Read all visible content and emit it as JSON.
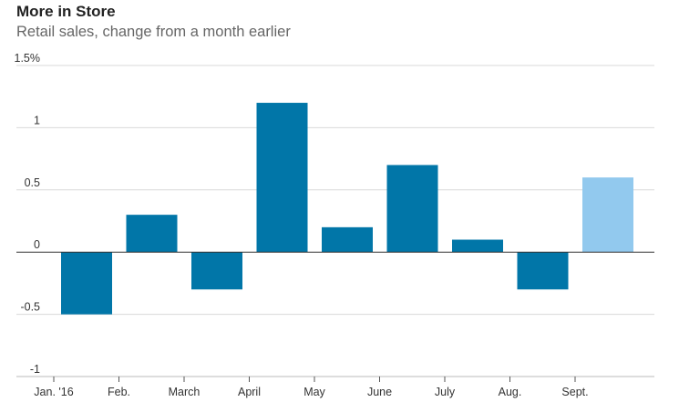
{
  "title": "More in Store",
  "subtitle": "Retail sales, change from a month earlier",
  "colors": {
    "bar": "#0176a8",
    "bar_highlight": "#92c9ee",
    "grid": "#d9d9d9",
    "zero_line": "#333333"
  },
  "chart_data": {
    "type": "bar",
    "title": "More in Store",
    "subtitle": "Retail sales, change from a month earlier",
    "categories": [
      "Jan. '16",
      "Feb.",
      "March",
      "April",
      "May",
      "June",
      "July",
      "Aug.",
      "Sept."
    ],
    "values": [
      -0.5,
      0.3,
      -0.3,
      1.2,
      0.2,
      0.7,
      0.1,
      -0.3,
      0.6
    ],
    "highlight_index": 8,
    "ylim": [
      -1,
      1.5
    ],
    "y_ticks": [
      1.5,
      1,
      0.5,
      0,
      -0.5,
      -1
    ],
    "y_tick_labels": [
      "1.5%",
      "1",
      "0.5",
      "0",
      "-0.5",
      "-1"
    ],
    "grid": true,
    "xlabel": "",
    "ylabel": ""
  }
}
